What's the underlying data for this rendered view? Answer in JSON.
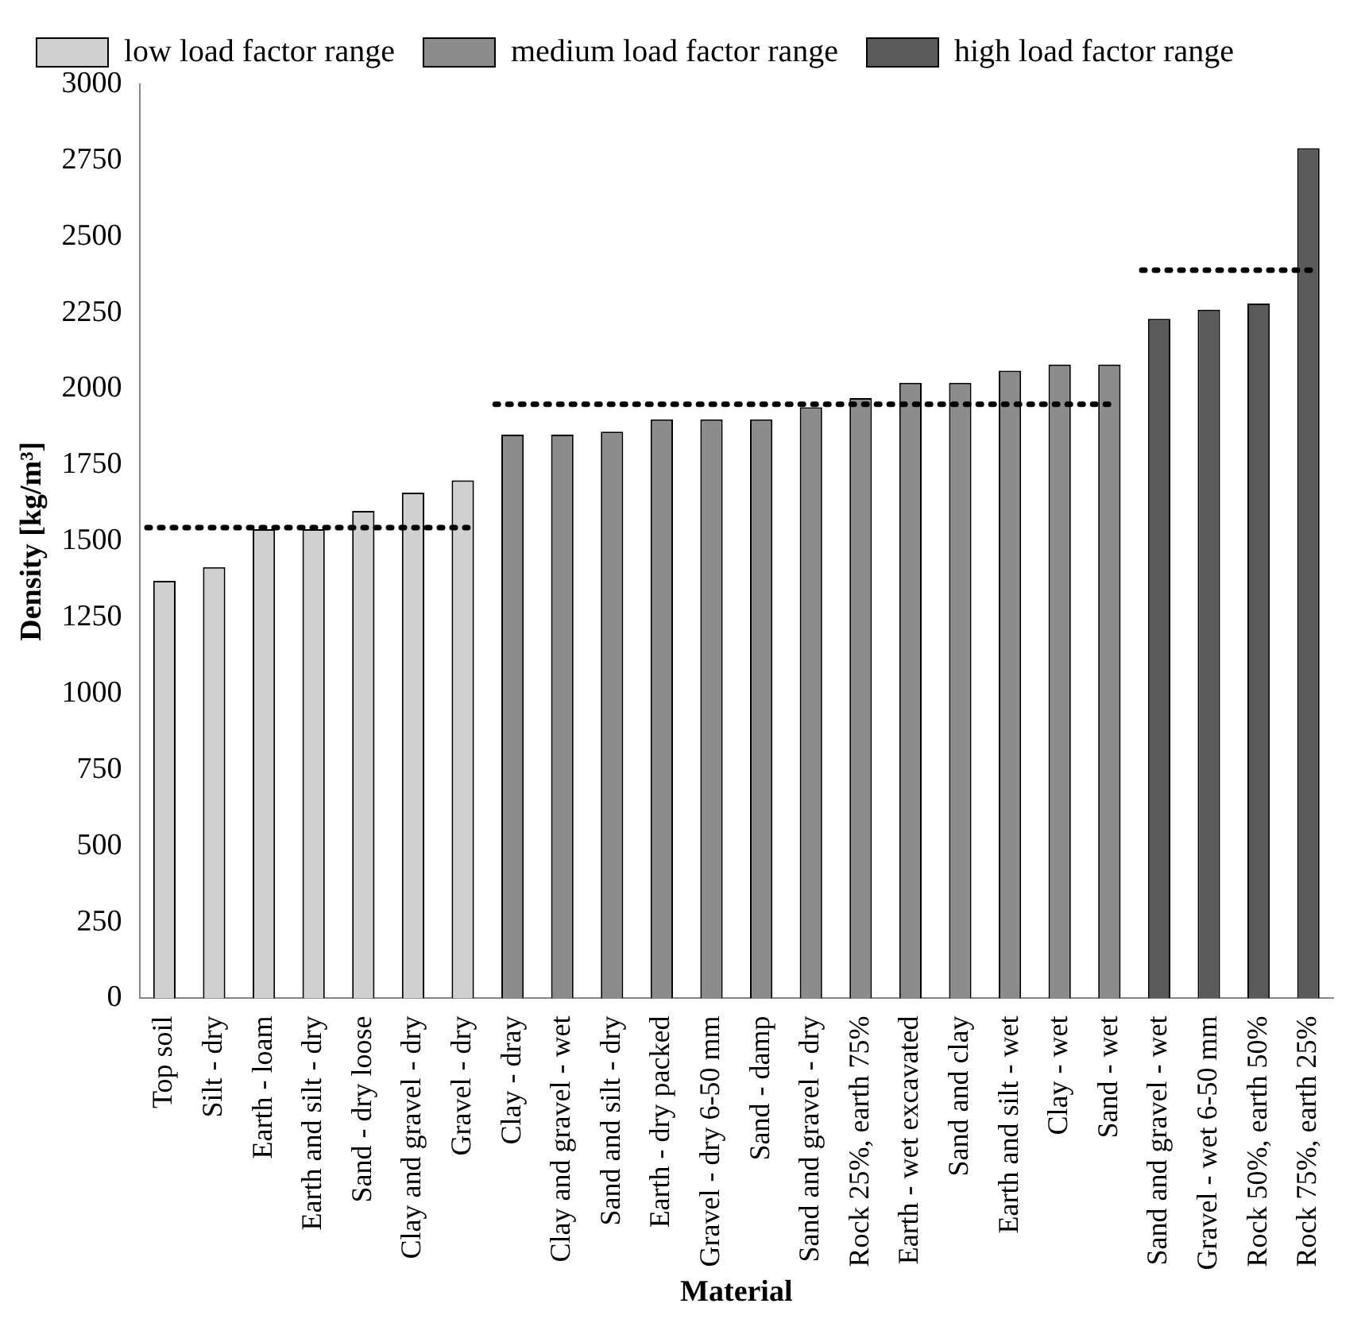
{
  "chart_data": {
    "type": "bar",
    "xlabel": "Material",
    "ylabel": "Density [kg/m³]",
    "categories": [
      "Top soil",
      "Silt - dry",
      "Earth - loam",
      "Earth and silt - dry",
      "Sand - dry loose",
      "Clay and gravel - dry",
      "Gravel - dry",
      "Clay - dray",
      "Clay and gravel - wet",
      "Sand and silt - dry",
      "Earth - dry packed",
      "Gravel - dry 6-50 mm",
      "Sand - damp",
      "Sand and gravel - dry",
      "Rock 25%, earth 75%",
      "Earth - wet excavated",
      "Sand and clay",
      "Earth and silt - wet",
      "Clay - wet",
      "Sand - wet",
      "Sand and gravel - wet",
      "Gravel - wet 6-50 mm",
      "Rock 50%, earth 50%",
      "Rock 75%, earth 25%"
    ],
    "series": [
      {
        "name": "low load factor range",
        "color": "#d0d0d0",
        "values": [
          1370,
          1415,
          1540,
          1540,
          1600,
          1660,
          1700,
          null,
          null,
          null,
          null,
          null,
          null,
          null,
          null,
          null,
          null,
          null,
          null,
          null,
          null,
          null,
          null,
          null
        ]
      },
      {
        "name": "medium load factor range",
        "color": "#8c8c8c",
        "values": [
          null,
          null,
          null,
          null,
          null,
          null,
          null,
          1850,
          1850,
          1860,
          1900,
          1900,
          1900,
          1940,
          1970,
          2020,
          2020,
          2060,
          2080,
          2080,
          null,
          null,
          null,
          null
        ]
      },
      {
        "name": "high load factor range",
        "color": "#5a5a5a",
        "values": [
          null,
          null,
          null,
          null,
          null,
          null,
          null,
          null,
          null,
          null,
          null,
          null,
          null,
          null,
          null,
          null,
          null,
          null,
          null,
          null,
          2230,
          2260,
          2280,
          2790
        ]
      }
    ],
    "ref_lines": [
      {
        "axis": "y",
        "value": 1545,
        "color": "#000000",
        "line_style": "dotted"
      },
      {
        "axis": "y",
        "value": 1950,
        "color": "#000000",
        "line_style": "dotted"
      },
      {
        "axis": "y",
        "value": 2390,
        "color": "#000000",
        "line_style": "dotted"
      }
    ],
    "ylim": [
      0,
      3000
    ],
    "yticks": [
      0,
      250,
      500,
      750,
      1000,
      1250,
      1500,
      1750,
      2000,
      2250,
      2500,
      2750,
      3000
    ],
    "grid": false,
    "legend": "top"
  }
}
